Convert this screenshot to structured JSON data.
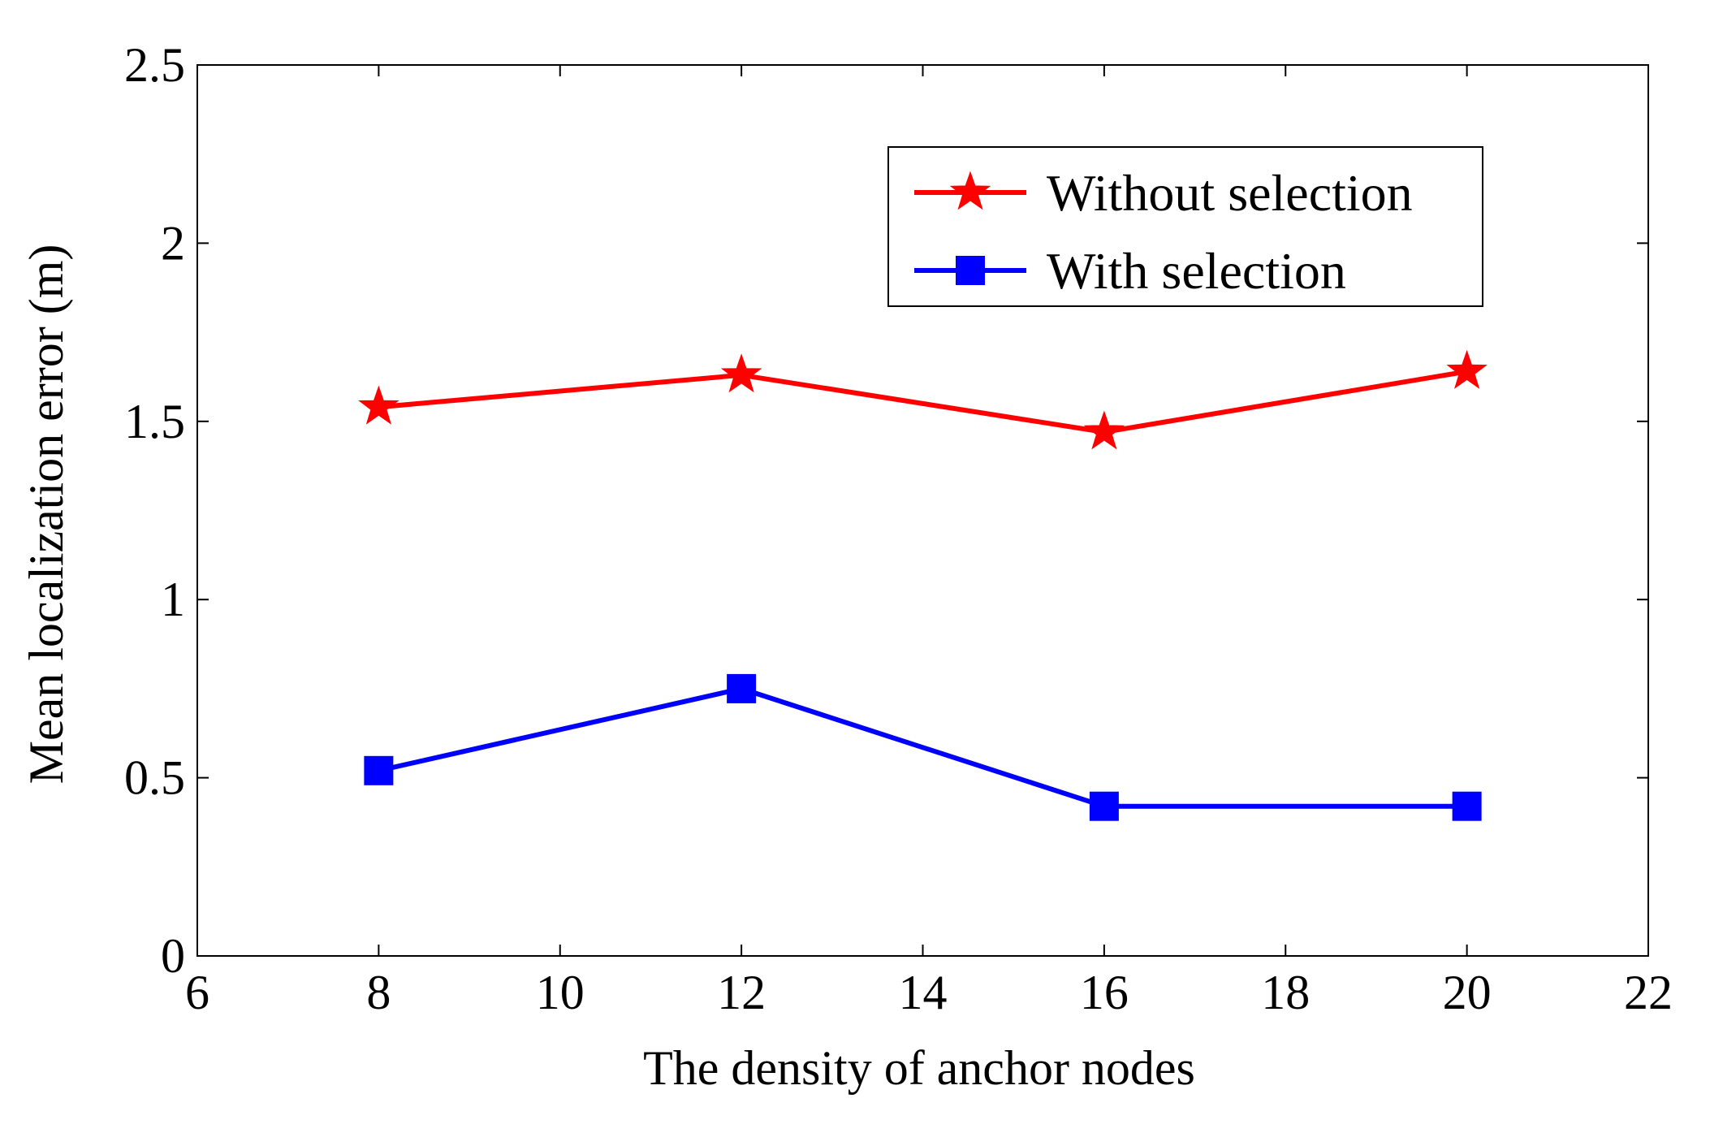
{
  "chart_data": {
    "type": "line",
    "title": "",
    "xlabel": "The density of anchor nodes",
    "ylabel": "Mean localization error (m)",
    "xlim": [
      6,
      22
    ],
    "ylim": [
      0,
      2.5
    ],
    "xticks": [
      6,
      8,
      10,
      12,
      14,
      16,
      18,
      20,
      22
    ],
    "yticks": [
      0,
      0.5,
      1,
      1.5,
      2,
      2.5
    ],
    "xtick_labels": [
      "6",
      "8",
      "10",
      "12",
      "14",
      "16",
      "18",
      "20",
      "22"
    ],
    "ytick_labels": [
      "0",
      "0.5",
      "1",
      "1.5",
      "2",
      "2.5"
    ],
    "grid": false,
    "legend_position": "top-right",
    "x": [
      8,
      12,
      16,
      20
    ],
    "series": [
      {
        "name": "Without selection",
        "values": [
          1.54,
          1.63,
          1.47,
          1.64
        ],
        "color": "#ff0000",
        "marker": "star"
      },
      {
        "name": "With selection",
        "values": [
          0.52,
          0.75,
          0.42,
          0.42
        ],
        "color": "#0000ff",
        "marker": "square"
      }
    ]
  }
}
